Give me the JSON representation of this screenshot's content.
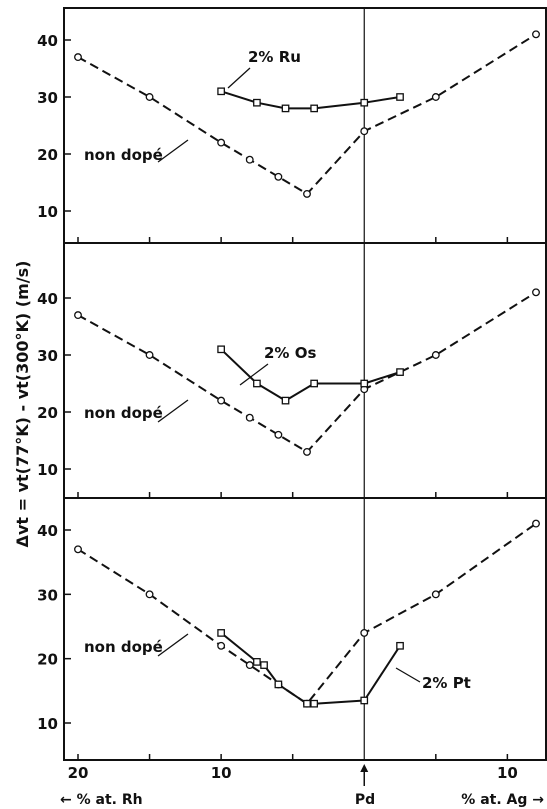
{
  "chart_data": [
    {
      "type": "line",
      "ylim": [
        5,
        45
      ],
      "yticks": [
        10,
        20,
        30,
        40
      ],
      "series": [
        {
          "name": "non dopé",
          "style": "dashed",
          "marker": "circle",
          "x": [
            -20,
            -15,
            -10,
            -8,
            -6,
            -4,
            0,
            5,
            12
          ],
          "y": [
            37,
            30,
            22,
            19,
            16,
            13,
            24,
            30,
            41
          ]
        },
        {
          "name": "2% Ru",
          "style": "solid",
          "marker": "square",
          "x": [
            -10,
            -7.5,
            -5.5,
            -3.5,
            0,
            2.5
          ],
          "y": [
            31,
            29,
            28,
            28,
            29,
            30
          ]
        }
      ],
      "annotations": [
        "2% Ru",
        "non dopé"
      ]
    },
    {
      "type": "line",
      "ylim": [
        5,
        45
      ],
      "yticks": [
        10,
        20,
        30,
        40
      ],
      "series": [
        {
          "name": "non dopé",
          "style": "dashed",
          "marker": "circle",
          "x": [
            -20,
            -15,
            -10,
            -8,
            -6,
            -4,
            0,
            5,
            12
          ],
          "y": [
            37,
            30,
            22,
            19,
            16,
            13,
            24,
            30,
            41
          ]
        },
        {
          "name": "2% Os",
          "style": "solid",
          "marker": "square",
          "x": [
            -10,
            -7.5,
            -5.5,
            -3.5,
            0,
            2.5
          ],
          "y": [
            31,
            25,
            22,
            25,
            25,
            27
          ]
        }
      ],
      "annotations": [
        "2% Os",
        "non dopé"
      ]
    },
    {
      "type": "line",
      "ylim": [
        5,
        45
      ],
      "yticks": [
        10,
        20,
        30,
        40
      ],
      "series": [
        {
          "name": "non dopé",
          "style": "dashed",
          "marker": "circle",
          "x": [
            -20,
            -15,
            -10,
            -8,
            -6,
            -4,
            0,
            5,
            12
          ],
          "y": [
            37,
            30,
            22,
            19,
            16,
            13,
            24,
            30,
            41
          ]
        },
        {
          "name": "2% Pt",
          "style": "solid",
          "marker": "square",
          "x": [
            -10,
            -7.5,
            -7,
            -6,
            -4,
            -3.5,
            0,
            2.5
          ],
          "y": [
            24,
            19.5,
            19,
            16,
            13,
            13,
            13.5,
            22
          ]
        }
      ],
      "annotations": [
        "2% Pt",
        "non dopé"
      ]
    }
  ],
  "xaxis": {
    "ticks": [
      {
        "value": -20,
        "label": "20"
      },
      {
        "value": -10,
        "label": "10"
      },
      {
        "value": 10,
        "label": "10"
      }
    ],
    "minor_ticks": [
      -15,
      -5,
      5
    ],
    "center_label": "Pd",
    "left_label": "← % at. Rh",
    "right_label": "% at. Ag →"
  },
  "ylabel": "Δvt = vt(77°K) - vt(300°K)  (m/s)",
  "colors": {
    "ink": "#111111",
    "background": "#ffffff"
  }
}
